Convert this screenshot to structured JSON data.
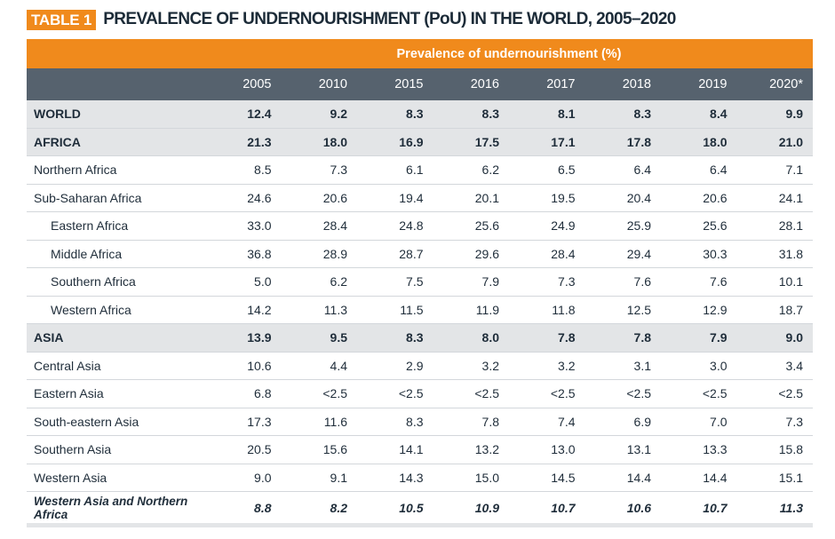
{
  "title": {
    "badge": "TABLE 1",
    "text": "PREVALENCE OF UNDERNOURISHMENT (PoU) IN THE WORLD, 2005–2020"
  },
  "band_label": "Prevalence of undernourishment (%)",
  "years": [
    "2005",
    "2010",
    "2015",
    "2016",
    "2017",
    "2018",
    "2019",
    "2020*"
  ],
  "rows": [
    {
      "label": "WORLD",
      "values": [
        "12.4",
        "9.2",
        "8.3",
        "8.3",
        "8.1",
        "8.3",
        "8.4",
        "9.9"
      ]
    },
    {
      "label": "AFRICA",
      "values": [
        "21.3",
        "18.0",
        "16.9",
        "17.5",
        "17.1",
        "17.8",
        "18.0",
        "21.0"
      ]
    },
    {
      "label": "Northern Africa",
      "values": [
        "8.5",
        "7.3",
        "6.1",
        "6.2",
        "6.5",
        "6.4",
        "6.4",
        "7.1"
      ]
    },
    {
      "label": "Sub-Saharan Africa",
      "values": [
        "24.6",
        "20.6",
        "19.4",
        "20.1",
        "19.5",
        "20.4",
        "20.6",
        "24.1"
      ]
    },
    {
      "label": "Eastern Africa",
      "values": [
        "33.0",
        "28.4",
        "24.8",
        "25.6",
        "24.9",
        "25.9",
        "25.6",
        "28.1"
      ]
    },
    {
      "label": "Middle Africa",
      "values": [
        "36.8",
        "28.9",
        "28.7",
        "29.6",
        "28.4",
        "29.4",
        "30.3",
        "31.8"
      ]
    },
    {
      "label": "Southern Africa",
      "values": [
        "5.0",
        "6.2",
        "7.5",
        "7.9",
        "7.3",
        "7.6",
        "7.6",
        "10.1"
      ]
    },
    {
      "label": "Western Africa",
      "values": [
        "14.2",
        "11.3",
        "11.5",
        "11.9",
        "11.8",
        "12.5",
        "12.9",
        "18.7"
      ]
    },
    {
      "label": "ASIA",
      "values": [
        "13.9",
        "9.5",
        "8.3",
        "8.0",
        "7.8",
        "7.8",
        "7.9",
        "9.0"
      ]
    },
    {
      "label": "Central Asia",
      "values": [
        "10.6",
        "4.4",
        "2.9",
        "3.2",
        "3.2",
        "3.1",
        "3.0",
        "3.4"
      ]
    },
    {
      "label": "Eastern Asia",
      "values": [
        "6.8",
        "<2.5",
        "<2.5",
        "<2.5",
        "<2.5",
        "<2.5",
        "<2.5",
        "<2.5"
      ]
    },
    {
      "label": "South-eastern Asia",
      "values": [
        "17.3",
        "11.6",
        "8.3",
        "7.8",
        "7.4",
        "6.9",
        "7.0",
        "7.3"
      ]
    },
    {
      "label": "Southern Asia",
      "values": [
        "20.5",
        "15.6",
        "14.1",
        "13.2",
        "13.0",
        "13.1",
        "13.3",
        "15.8"
      ]
    },
    {
      "label": "Western Asia",
      "values": [
        "9.0",
        "9.1",
        "14.3",
        "15.0",
        "14.5",
        "14.4",
        "14.4",
        "15.1"
      ]
    },
    {
      "label": "Western Asia and Northern Africa",
      "values": [
        "8.8",
        "8.2",
        "10.5",
        "10.9",
        "10.7",
        "10.6",
        "10.7",
        "11.3"
      ]
    }
  ],
  "colors": {
    "accent": "#f08a1c",
    "header": "#56626e",
    "shade": "#e3e5e7",
    "text": "#1f2d3a"
  }
}
